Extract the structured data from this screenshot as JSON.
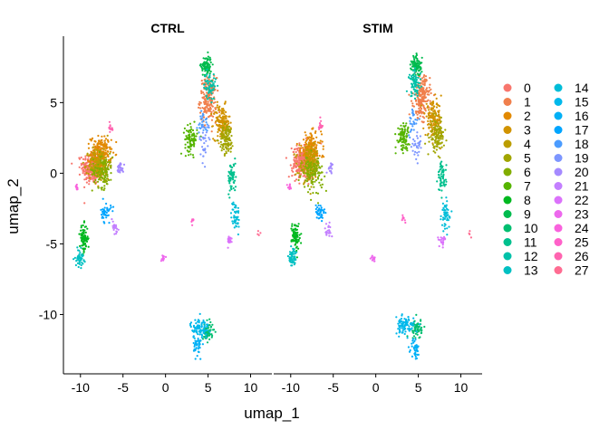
{
  "chart_data": {
    "type": "scatter",
    "title": "",
    "xlabel": "umap_1",
    "ylabel": "umap_2",
    "xlim": [
      -12,
      12.5
    ],
    "ylim": [
      -14.2,
      9.7
    ],
    "x_ticks": [
      -10,
      -5,
      0,
      5,
      10
    ],
    "y_ticks": [
      -10,
      -5,
      0,
      5
    ],
    "grid": false,
    "legend": "right",
    "legend_columns": 2,
    "panels": [
      {
        "title": "CTRL",
        "clusters": [
          {
            "cluster": "0",
            "x": -8.6,
            "y": 0.4,
            "sx": 1.0,
            "sy": 1.0,
            "n": 300
          },
          {
            "cluster": "1",
            "x": 5.0,
            "y": 5.2,
            "sx": 0.8,
            "sy": 1.3,
            "n": 190
          },
          {
            "cluster": "2",
            "x": -7.6,
            "y": 1.4,
            "sx": 1.0,
            "sy": 1.0,
            "n": 220
          },
          {
            "cluster": "3",
            "x": 6.6,
            "y": 3.6,
            "sx": 0.8,
            "sy": 1.0,
            "n": 150
          },
          {
            "cluster": "4",
            "x": -7.8,
            "y": 0.6,
            "sx": 1.0,
            "sy": 1.0,
            "n": 160
          },
          {
            "cluster": "5",
            "x": 7.2,
            "y": 2.4,
            "sx": 0.7,
            "sy": 0.9,
            "n": 110
          },
          {
            "cluster": "6",
            "x": -7.4,
            "y": 0.2,
            "sx": 1.0,
            "sy": 1.0,
            "n": 110
          },
          {
            "cluster": "7",
            "x": 3.0,
            "y": 2.4,
            "sx": 0.6,
            "sy": 0.8,
            "n": 90
          },
          {
            "cluster": "8",
            "x": -9.6,
            "y": -4.6,
            "sx": 0.4,
            "sy": 0.8,
            "n": 80
          },
          {
            "cluster": "9",
            "x": 4.8,
            "y": 7.6,
            "sx": 0.5,
            "sy": 0.6,
            "n": 90
          },
          {
            "cluster": "10",
            "x": 5.0,
            "y": -11.2,
            "sx": 0.5,
            "sy": 0.6,
            "n": 60
          },
          {
            "cluster": "11",
            "x": 7.8,
            "y": -0.3,
            "sx": 0.4,
            "sy": 0.9,
            "n": 60
          },
          {
            "cluster": "12",
            "x": 5.2,
            "y": 6.2,
            "sx": 0.6,
            "sy": 0.8,
            "n": 60
          },
          {
            "cluster": "13",
            "x": -10.1,
            "y": -6.0,
            "sx": 0.4,
            "sy": 0.5,
            "n": 50
          },
          {
            "cluster": "14",
            "x": 8.2,
            "y": -3.0,
            "sx": 0.4,
            "sy": 0.9,
            "n": 50
          },
          {
            "cluster": "15",
            "x": 4.0,
            "y": -11.0,
            "sx": 0.9,
            "sy": 0.6,
            "n": 90
          },
          {
            "cluster": "16",
            "x": 3.8,
            "y": -12.2,
            "sx": 0.4,
            "sy": 0.6,
            "n": 40
          },
          {
            "cluster": "17",
            "x": -7.0,
            "y": -2.8,
            "sx": 0.5,
            "sy": 0.6,
            "n": 40
          },
          {
            "cluster": "18",
            "x": 4.4,
            "y": 3.6,
            "sx": 0.5,
            "sy": 0.8,
            "n": 30
          },
          {
            "cluster": "19",
            "x": 4.6,
            "y": 2.2,
            "sx": 0.5,
            "sy": 1.0,
            "n": 30
          },
          {
            "cluster": "20",
            "x": -5.3,
            "y": 0.4,
            "sx": 0.3,
            "sy": 0.3,
            "n": 30
          },
          {
            "cluster": "21",
            "x": -6.0,
            "y": -3.8,
            "sx": 0.4,
            "sy": 0.5,
            "n": 20
          },
          {
            "cluster": "22",
            "x": 7.5,
            "y": -4.8,
            "sx": 0.4,
            "sy": 0.3,
            "n": 20
          },
          {
            "cluster": "23",
            "x": -0.3,
            "y": -6.0,
            "sx": 0.2,
            "sy": 0.2,
            "n": 14
          },
          {
            "cluster": "24",
            "x": -10.5,
            "y": -1.0,
            "sx": 0.2,
            "sy": 0.2,
            "n": 10
          },
          {
            "cluster": "25",
            "x": 3.2,
            "y": -3.4,
            "sx": 0.2,
            "sy": 0.2,
            "n": 8
          },
          {
            "cluster": "26",
            "x": -6.5,
            "y": 3.2,
            "sx": 0.3,
            "sy": 0.3,
            "n": 15
          },
          {
            "cluster": "27",
            "x": 11.0,
            "y": -4.3,
            "sx": 0.2,
            "sy": 0.2,
            "n": 4
          }
        ]
      },
      {
        "title": "STIM",
        "clusters": [
          {
            "cluster": "0",
            "x": -8.6,
            "y": 0.8,
            "sx": 1.0,
            "sy": 1.0,
            "n": 300
          },
          {
            "cluster": "1",
            "x": 5.4,
            "y": 5.4,
            "sx": 0.8,
            "sy": 1.2,
            "n": 190
          },
          {
            "cluster": "2",
            "x": -7.6,
            "y": 1.6,
            "sx": 1.0,
            "sy": 1.0,
            "n": 220
          },
          {
            "cluster": "3",
            "x": 6.8,
            "y": 3.8,
            "sx": 0.8,
            "sy": 1.0,
            "n": 150
          },
          {
            "cluster": "4",
            "x": -7.8,
            "y": 0.6,
            "sx": 1.0,
            "sy": 1.0,
            "n": 160
          },
          {
            "cluster": "5",
            "x": 7.2,
            "y": 2.6,
            "sx": 0.7,
            "sy": 0.9,
            "n": 110
          },
          {
            "cluster": "6",
            "x": -7.4,
            "y": 0.0,
            "sx": 1.0,
            "sy": 1.0,
            "n": 110
          },
          {
            "cluster": "7",
            "x": 3.2,
            "y": 2.6,
            "sx": 0.6,
            "sy": 0.8,
            "n": 90
          },
          {
            "cluster": "8",
            "x": -9.4,
            "y": -4.4,
            "sx": 0.4,
            "sy": 0.8,
            "n": 80
          },
          {
            "cluster": "9",
            "x": 4.8,
            "y": 7.6,
            "sx": 0.5,
            "sy": 0.6,
            "n": 90
          },
          {
            "cluster": "10",
            "x": 4.8,
            "y": -11.0,
            "sx": 0.5,
            "sy": 0.6,
            "n": 60
          },
          {
            "cluster": "11",
            "x": 7.8,
            "y": -0.3,
            "sx": 0.4,
            "sy": 0.9,
            "n": 60
          },
          {
            "cluster": "12",
            "x": 4.6,
            "y": 6.4,
            "sx": 0.6,
            "sy": 0.8,
            "n": 70
          },
          {
            "cluster": "13",
            "x": -9.8,
            "y": -6.0,
            "sx": 0.4,
            "sy": 0.5,
            "n": 50
          },
          {
            "cluster": "14",
            "x": 8.2,
            "y": -3.0,
            "sx": 0.4,
            "sy": 0.9,
            "n": 50
          },
          {
            "cluster": "15",
            "x": 3.4,
            "y": -10.8,
            "sx": 0.9,
            "sy": 0.5,
            "n": 90
          },
          {
            "cluster": "16",
            "x": 4.6,
            "y": -12.4,
            "sx": 0.4,
            "sy": 0.6,
            "n": 40
          },
          {
            "cluster": "17",
            "x": -6.5,
            "y": -2.8,
            "sx": 0.5,
            "sy": 0.6,
            "n": 40
          },
          {
            "cluster": "18",
            "x": 4.4,
            "y": 3.6,
            "sx": 0.5,
            "sy": 0.8,
            "n": 30
          },
          {
            "cluster": "19",
            "x": 4.8,
            "y": 1.8,
            "sx": 0.5,
            "sy": 1.0,
            "n": 30
          },
          {
            "cluster": "20",
            "x": -5.3,
            "y": 0.4,
            "sx": 0.3,
            "sy": 0.3,
            "n": 20
          },
          {
            "cluster": "21",
            "x": -5.6,
            "y": -4.0,
            "sx": 0.4,
            "sy": 0.5,
            "n": 20
          },
          {
            "cluster": "22",
            "x": 7.8,
            "y": -4.8,
            "sx": 0.4,
            "sy": 0.3,
            "n": 20
          },
          {
            "cluster": "23",
            "x": -0.3,
            "y": -6.0,
            "sx": 0.2,
            "sy": 0.2,
            "n": 14
          },
          {
            "cluster": "24",
            "x": -10.2,
            "y": -1.0,
            "sx": 0.2,
            "sy": 0.2,
            "n": 10
          },
          {
            "cluster": "25",
            "x": 3.2,
            "y": -3.2,
            "sx": 0.2,
            "sy": 0.2,
            "n": 8
          },
          {
            "cluster": "26",
            "x": -6.5,
            "y": 3.4,
            "sx": 0.3,
            "sy": 0.3,
            "n": 15
          },
          {
            "cluster": "27",
            "x": 11.0,
            "y": -4.3,
            "sx": 0.2,
            "sy": 0.2,
            "n": 4
          }
        ]
      }
    ],
    "legend_entries": [
      {
        "label": "0",
        "color": "#F8766D"
      },
      {
        "label": "1",
        "color": "#F07F4C"
      },
      {
        "label": "2",
        "color": "#E28900"
      },
      {
        "label": "3",
        "color": "#D19300"
      },
      {
        "label": "4",
        "color": "#BB9D00"
      },
      {
        "label": "5",
        "color": "#A1A500"
      },
      {
        "label": "6",
        "color": "#82AD00"
      },
      {
        "label": "7",
        "color": "#55B400"
      },
      {
        "label": "8",
        "color": "#00B820"
      },
      {
        "label": "9",
        "color": "#00BB4E"
      },
      {
        "label": "10",
        "color": "#00BE70"
      },
      {
        "label": "11",
        "color": "#00C08E"
      },
      {
        "label": "12",
        "color": "#00C1A9"
      },
      {
        "label": "13",
        "color": "#00C0C2"
      },
      {
        "label": "14",
        "color": "#00BDD8"
      },
      {
        "label": "15",
        "color": "#00B8EB"
      },
      {
        "label": "16",
        "color": "#00B0F6"
      },
      {
        "label": "17",
        "color": "#00A5FF"
      },
      {
        "label": "18",
        "color": "#4B9CFF"
      },
      {
        "label": "19",
        "color": "#7D96FF"
      },
      {
        "label": "20",
        "color": "#A58AFF"
      },
      {
        "label": "21",
        "color": "#C37FFF"
      },
      {
        "label": "22",
        "color": "#DB72FB"
      },
      {
        "label": "23",
        "color": "#ED68ED"
      },
      {
        "label": "24",
        "color": "#F962DD"
      },
      {
        "label": "25",
        "color": "#FF61C9"
      },
      {
        "label": "26",
        "color": "#FF64B0"
      },
      {
        "label": "27",
        "color": "#FF6C92"
      }
    ]
  }
}
